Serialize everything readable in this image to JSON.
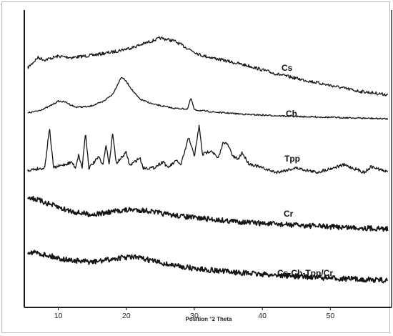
{
  "chart_data": {
    "type": "line",
    "title": "",
    "xlabel": "Position °2 Theta",
    "ylabel": "",
    "xlim": [
      5,
      59
    ],
    "x_ticks": [
      "10",
      "20",
      "30",
      "40",
      "50"
    ],
    "legend": "labels placed next to each trace (right side)",
    "grid": false,
    "series": [
      {
        "name": "Cs",
        "points": [
          [
            5.5,
            0.08
          ],
          [
            7,
            0.3
          ],
          [
            8,
            0.25
          ],
          [
            10,
            0.33
          ],
          [
            12,
            0.3
          ],
          [
            15,
            0.35
          ],
          [
            18,
            0.42
          ],
          [
            21,
            0.52
          ],
          [
            23,
            0.62
          ],
          [
            25,
            0.72
          ],
          [
            27,
            0.66
          ],
          [
            29,
            0.5
          ],
          [
            31,
            0.35
          ],
          [
            34,
            0.25
          ],
          [
            38,
            0.12
          ],
          [
            42,
            -0.05
          ],
          [
            46,
            -0.18
          ],
          [
            50,
            -0.3
          ],
          [
            54,
            -0.42
          ],
          [
            58.5,
            -0.5
          ]
        ]
      },
      {
        "name": "Ch",
        "points": [
          [
            5.5,
            0.0
          ],
          [
            7,
            0.05
          ],
          [
            8.5,
            0.15
          ],
          [
            10,
            0.3
          ],
          [
            11,
            0.28
          ],
          [
            12.5,
            0.15
          ],
          [
            14.5,
            0.16
          ],
          [
            16.5,
            0.28
          ],
          [
            18,
            0.48
          ],
          [
            19.3,
            0.92
          ],
          [
            20,
            0.8
          ],
          [
            21,
            0.55
          ],
          [
            22,
            0.35
          ],
          [
            24,
            0.22
          ],
          [
            27,
            0.12
          ],
          [
            29,
            0.1
          ],
          [
            29.5,
            0.38
          ],
          [
            30,
            0.08
          ],
          [
            33,
            0.02
          ],
          [
            38,
            -0.04
          ],
          [
            45,
            -0.09
          ],
          [
            52,
            -0.12
          ],
          [
            58.5,
            -0.15
          ]
        ]
      },
      {
        "name": "Tpp",
        "points": [
          [
            5.5,
            0.0
          ],
          [
            8,
            0.05
          ],
          [
            8.7,
            0.95
          ],
          [
            9.3,
            0.05
          ],
          [
            12,
            0.18
          ],
          [
            12.5,
            0.05
          ],
          [
            13,
            0.35
          ],
          [
            13.5,
            0.05
          ],
          [
            14,
            0.85
          ],
          [
            14.5,
            0.05
          ],
          [
            16,
            0.3
          ],
          [
            16.5,
            0.1
          ],
          [
            17,
            0.55
          ],
          [
            17.5,
            0.15
          ],
          [
            18,
            0.85
          ],
          [
            18.5,
            0.15
          ],
          [
            20,
            0.4
          ],
          [
            20.5,
            0.1
          ],
          [
            22,
            0.28
          ],
          [
            22.5,
            0.05
          ],
          [
            24,
            0.05
          ],
          [
            25.5,
            0.2
          ],
          [
            26,
            0.05
          ],
          [
            27.5,
            0.22
          ],
          [
            28,
            0.1
          ],
          [
            29.2,
            0.75
          ],
          [
            30,
            0.3
          ],
          [
            30.7,
            1.0
          ],
          [
            31.2,
            0.35
          ],
          [
            32.5,
            0.45
          ],
          [
            33.5,
            0.25
          ],
          [
            34.3,
            0.65
          ],
          [
            35,
            0.55
          ],
          [
            35.7,
            0.3
          ],
          [
            36.5,
            0.25
          ],
          [
            37,
            0.4
          ],
          [
            38,
            0.15
          ],
          [
            40,
            0.05
          ],
          [
            42,
            -0.05
          ],
          [
            45,
            0.05
          ],
          [
            48,
            -0.05
          ],
          [
            52,
            0.12
          ],
          [
            55,
            -0.05
          ],
          [
            56,
            0.08
          ],
          [
            58.5,
            -0.05
          ]
        ]
      },
      {
        "name": "Cr",
        "points": [
          [
            5.5,
            0.55
          ],
          [
            7,
            0.45
          ],
          [
            9,
            0.3
          ],
          [
            11,
            0.15
          ],
          [
            13,
            0.05
          ],
          [
            15,
            0.0
          ],
          [
            17,
            0.05
          ],
          [
            19,
            0.12
          ],
          [
            21,
            0.15
          ],
          [
            23,
            0.12
          ],
          [
            26,
            0.0
          ],
          [
            30,
            -0.1
          ],
          [
            35,
            -0.2
          ],
          [
            40,
            -0.28
          ],
          [
            45,
            -0.33
          ],
          [
            50,
            -0.38
          ],
          [
            55,
            -0.42
          ],
          [
            58.5,
            -0.45
          ]
        ]
      },
      {
        "name": "Cs-Ch-Tpp/Cr",
        "points": [
          [
            5.5,
            0.45
          ],
          [
            7,
            0.4
          ],
          [
            9,
            0.3
          ],
          [
            11,
            0.2
          ],
          [
            13,
            0.15
          ],
          [
            15,
            0.12
          ],
          [
            17,
            0.18
          ],
          [
            19,
            0.25
          ],
          [
            21,
            0.28
          ],
          [
            23,
            0.2
          ],
          [
            26,
            0.05
          ],
          [
            30,
            -0.08
          ],
          [
            35,
            -0.18
          ],
          [
            40,
            -0.26
          ],
          [
            45,
            -0.32
          ],
          [
            50,
            -0.38
          ],
          [
            55,
            -0.42
          ],
          [
            58.5,
            -0.45
          ]
        ]
      }
    ]
  }
}
